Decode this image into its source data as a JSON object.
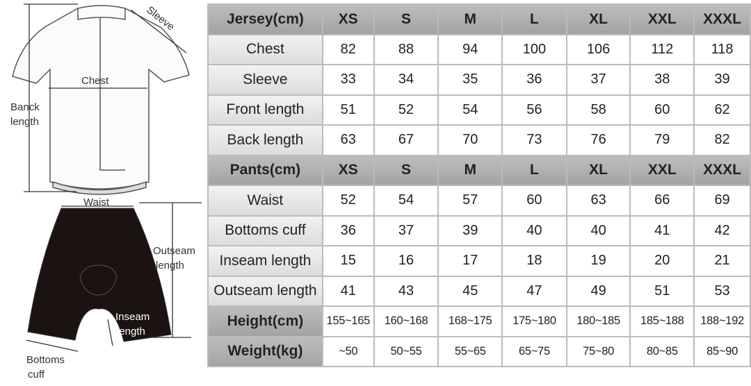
{
  "diagram": {
    "jersey": {
      "sleeve": "Sleeve",
      "chest": "Chest",
      "back_length": [
        "Banck",
        "length"
      ]
    },
    "pants": {
      "waist": "Waist",
      "outseam": [
        "Outseam",
        "length"
      ],
      "inseam": [
        "Inseam",
        "length"
      ],
      "bottoms_cuff": [
        "Bottoms",
        "cuff"
      ]
    }
  },
  "table": {
    "rows": [
      [
        "Jersey(cm)",
        "XS",
        "S",
        "M",
        "L",
        "XL",
        "XXL",
        "XXXL"
      ],
      [
        "Chest",
        "82",
        "88",
        "94",
        "100",
        "106",
        "112",
        "118"
      ],
      [
        "Sleeve",
        "33",
        "34",
        "35",
        "36",
        "37",
        "38",
        "39"
      ],
      [
        "Front length",
        "51",
        "52",
        "54",
        "56",
        "58",
        "60",
        "62"
      ],
      [
        "Back length",
        "63",
        "67",
        "70",
        "73",
        "76",
        "79",
        "82"
      ],
      [
        "Pants(cm)",
        "XS",
        "S",
        "M",
        "L",
        "XL",
        "XXL",
        "XXXL"
      ],
      [
        "Waist",
        "52",
        "54",
        "57",
        "60",
        "63",
        "66",
        "69"
      ],
      [
        "Bottoms cuff",
        "36",
        "37",
        "39",
        "40",
        "40",
        "41",
        "42"
      ],
      [
        "Inseam length",
        "15",
        "16",
        "17",
        "18",
        "19",
        "20",
        "21"
      ],
      [
        "Outseam length",
        "41",
        "43",
        "45",
        "47",
        "49",
        "51",
        "53"
      ],
      [
        "Height(cm)",
        "155~165",
        "160~168",
        "168~175",
        "175~180",
        "180~185",
        "185~188",
        "188~192"
      ],
      [
        "Weight(kg)",
        "~50",
        "50~55",
        "55~65",
        "65~75",
        "75~80",
        "80~85",
        "85~90"
      ]
    ]
  }
}
